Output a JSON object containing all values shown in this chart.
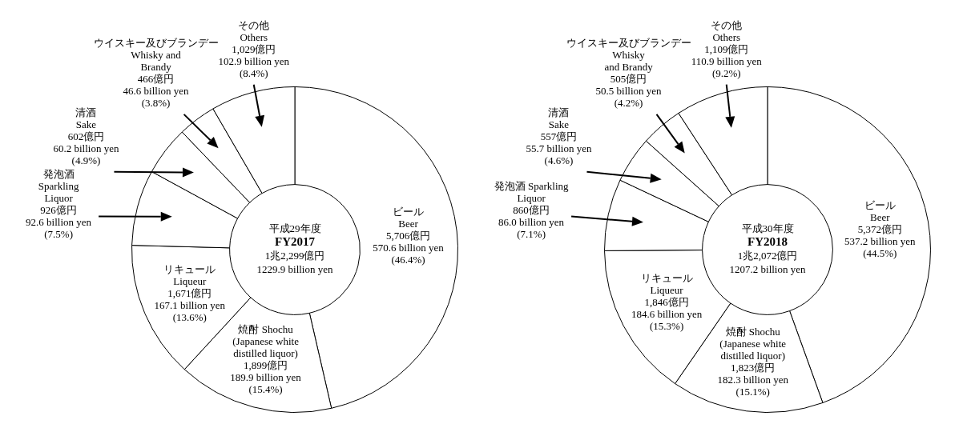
{
  "chart_data": [
    {
      "type": "donut",
      "title": "平成29年度\nFY2017",
      "subtitle": "1兆2,299億円\n1229.9 billion yen",
      "categories": [
        "ビール\nBeer",
        "焼酎 Shochu\n(Japanese white\ndistilled liquor)",
        "リキュール\nLiqueur",
        "発泡酒\nSparkling\nLiquor",
        "清酒\nSake",
        "ウイスキー及びブランデー\nWhisky and\nBrandy",
        "その他\nOthers"
      ],
      "values": [
        5706,
        1899,
        1671,
        926,
        602,
        466,
        1029
      ],
      "value_labels": [
        "5,706億円\n570.6 billion yen\n(46.4%)",
        "1,899億円\n189.9 billion yen\n(15.4%)",
        "1,671億円\n167.1 billion yen\n(13.6%)",
        "926億円\n92.6 billion yen\n(7.5%)",
        "602億円\n60.2 billion yen\n(4.9%)",
        "466億円\n46.6 billion yen\n(3.8%)",
        "1,029億円\n102.9 billion yen\n(8.4%)"
      ],
      "colors": [
        "#ffffff",
        "#ffffff",
        "#ffffff",
        "#ffffff",
        "#ffffff",
        "#ffffff",
        "#ffffff"
      ]
    },
    {
      "type": "donut",
      "title": "平成30年度\nFY2018",
      "subtitle": "1兆2,072億円\n1207.2 billion yen",
      "categories": [
        "ビール\nBeer",
        "焼酎 Shochu\n(Japanese white\ndistilled liquor)",
        "リキュール\nLiqueur",
        "発泡酒 Sparkling\nLiquor",
        "清酒\nSake",
        "ウイスキー及びブランデー\nWhisky\nand Brandy",
        "その他\nOthers"
      ],
      "values": [
        5372,
        1823,
        1846,
        860,
        557,
        505,
        1109
      ],
      "value_labels": [
        "5,372億円\n537.2 billion yen\n(44.5%)",
        "1,823億円\n182.3 billion yen\n(15.1%)",
        "1,846億円\n184.6 billion yen\n(15.3%)",
        "860億円\n86.0 billion yen\n(7.1%)",
        "557億円\n55.7 billion yen\n(4.6%)",
        "505億円\n50.5 billion yen\n(4.2%)",
        "1,109億円\n110.9 billion yen\n(9.2%)"
      ],
      "colors": [
        "#ffffff",
        "#ffffff",
        "#ffffff",
        "#ffffff",
        "#ffffff",
        "#ffffff",
        "#ffffff"
      ]
    }
  ]
}
